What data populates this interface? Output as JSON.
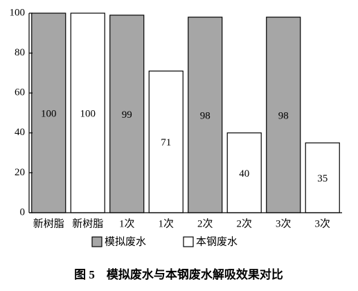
{
  "chart_data": {
    "type": "bar",
    "categories": [
      "新树脂",
      "新树脂",
      "1次",
      "1次",
      "2次",
      "2次",
      "3次",
      "3次"
    ],
    "series": [
      {
        "name": "模拟废水",
        "color": "#a6a6a6",
        "values": [
          100,
          null,
          99,
          null,
          98,
          null,
          98,
          null
        ]
      },
      {
        "name": "本钢废水",
        "color": "#ffffff",
        "values": [
          null,
          100,
          null,
          71,
          null,
          40,
          null,
          35
        ]
      }
    ],
    "ylim": [
      0,
      100
    ],
    "yticks": [
      0,
      20,
      40,
      60,
      80,
      100
    ],
    "caption": "图 5　模拟废水与本钢废水解吸效果对比"
  }
}
